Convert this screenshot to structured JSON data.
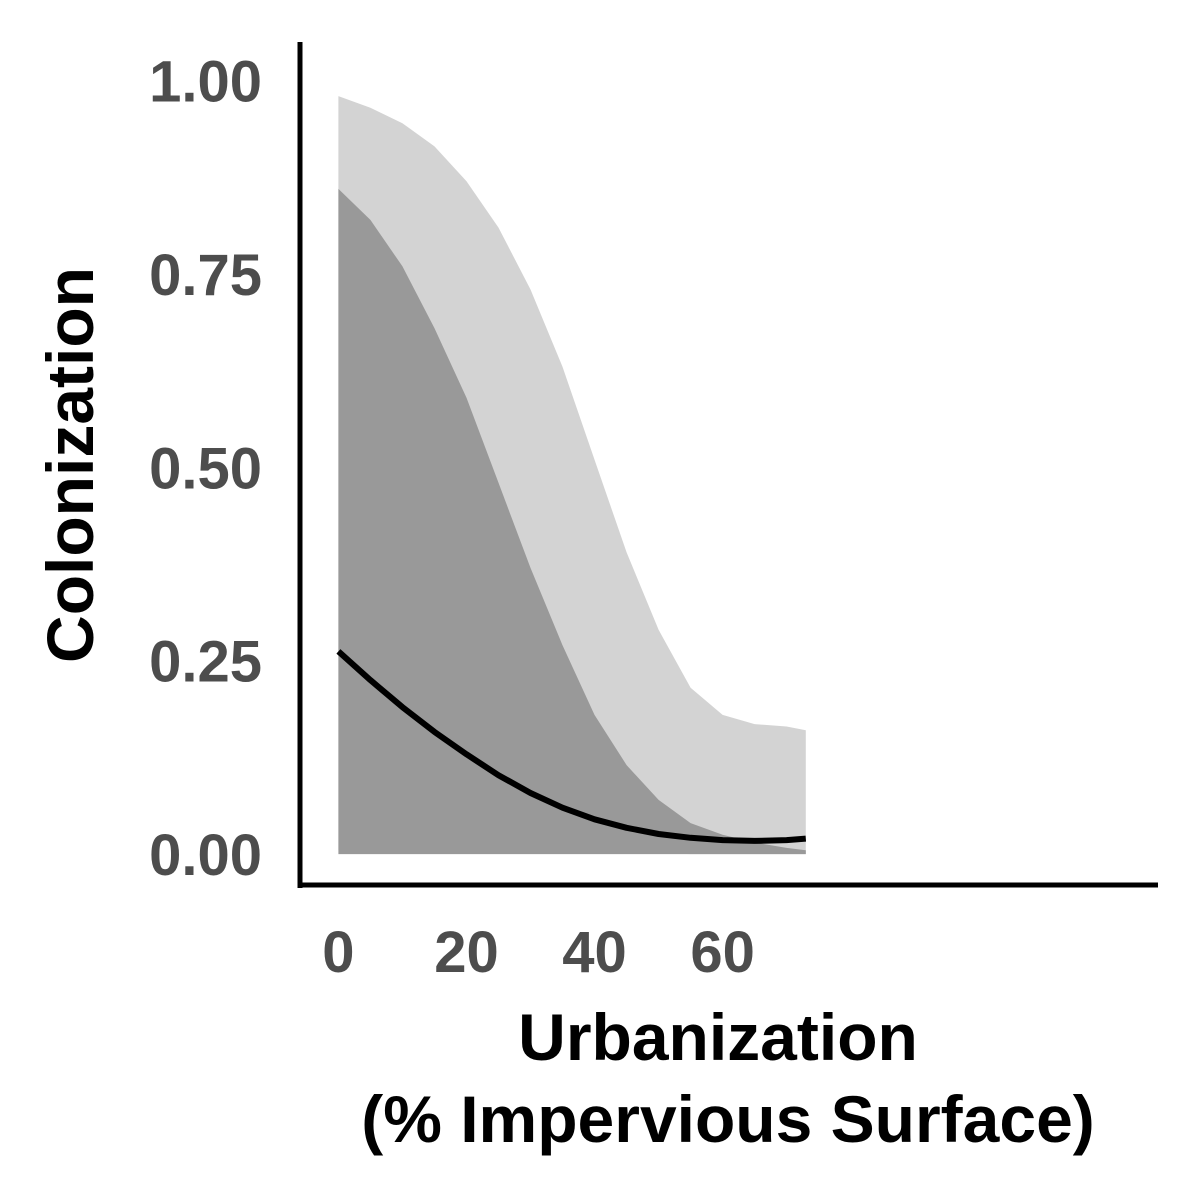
{
  "chart_data": {
    "type": "line",
    "xlabel_line1": "Urbanization",
    "xlabel_line2": "(% Impervious Surface)",
    "ylabel": "Colonization",
    "xlim": [
      -6,
      128
    ],
    "ylim": [
      -0.04,
      1.05
    ],
    "x_ticks": [
      0,
      20,
      40,
      60
    ],
    "x_tick_labels": [
      "0",
      "20",
      "40",
      "60"
    ],
    "y_ticks": [
      0,
      0.25,
      0.5,
      0.75,
      1
    ],
    "y_tick_labels": [
      "0.00",
      "0.25",
      "0.50",
      "0.75",
      "1.00"
    ],
    "grid": false,
    "legend": "none",
    "series": [
      {
        "kind": "ribbon",
        "role": "outer-interval",
        "color": "#d3d3d3",
        "x": [
          0,
          5,
          10,
          15,
          20,
          25,
          30,
          35,
          40,
          45,
          50,
          55,
          60,
          65,
          70,
          73
        ],
        "upper": [
          0.98,
          0.965,
          0.945,
          0.915,
          0.87,
          0.81,
          0.73,
          0.63,
          0.51,
          0.39,
          0.29,
          0.215,
          0.18,
          0.168,
          0.165,
          0.16
        ],
        "lower": [
          0.005,
          0.006,
          0.007,
          0.007,
          0.006,
          0.005,
          0.004,
          0.003,
          0.002,
          0.001,
          0.001,
          0.0,
          0.0,
          0.0,
          0.0,
          0.0
        ]
      },
      {
        "kind": "ribbon",
        "role": "inner-interval",
        "color": "#999999",
        "x": [
          0,
          5,
          10,
          15,
          20,
          25,
          30,
          35,
          40,
          45,
          50,
          55,
          60,
          65,
          70,
          73
        ],
        "upper": [
          0.86,
          0.82,
          0.76,
          0.68,
          0.59,
          0.48,
          0.37,
          0.27,
          0.18,
          0.115,
          0.07,
          0.04,
          0.025,
          0.015,
          0.008,
          0.005
        ],
        "lower": [
          0.0,
          0.0,
          0.0,
          0.0,
          0.0,
          0.0,
          0.0,
          0.0,
          0.0,
          0.0,
          0.0,
          0.0,
          0.0,
          0.0,
          0.0,
          0.0
        ]
      },
      {
        "kind": "line",
        "role": "mean",
        "color": "#000000",
        "x": [
          0,
          5,
          10,
          15,
          20,
          25,
          30,
          35,
          40,
          45,
          50,
          55,
          60,
          65,
          70,
          73
        ],
        "y": [
          0.262,
          0.225,
          0.19,
          0.158,
          0.129,
          0.102,
          0.079,
          0.06,
          0.045,
          0.034,
          0.026,
          0.021,
          0.018,
          0.017,
          0.018,
          0.02
        ]
      }
    ]
  }
}
